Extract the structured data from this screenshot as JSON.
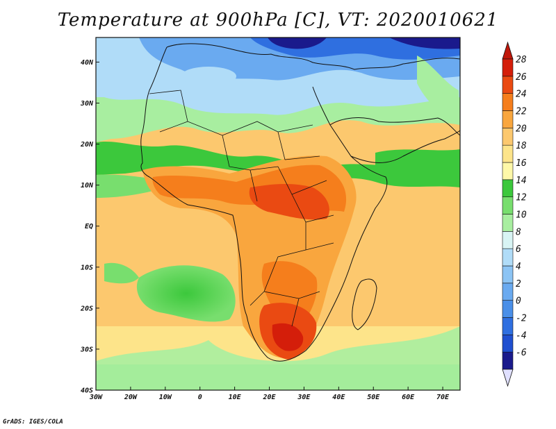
{
  "title": "Temperature at 900hPa [C], VT: 2020010621",
  "credit": "GrADS: IGES/COLA",
  "map": {
    "lon_range": [
      -30,
      75
    ],
    "lat_range": [
      -40,
      46
    ],
    "lon_ticks": [
      {
        "value": -30,
        "label": "30W"
      },
      {
        "value": -20,
        "label": "20W"
      },
      {
        "value": -10,
        "label": "10W"
      },
      {
        "value": 0,
        "label": "0"
      },
      {
        "value": 10,
        "label": "10E"
      },
      {
        "value": 20,
        "label": "20E"
      },
      {
        "value": 30,
        "label": "30E"
      },
      {
        "value": 40,
        "label": "40E"
      },
      {
        "value": 50,
        "label": "50E"
      },
      {
        "value": 60,
        "label": "60E"
      },
      {
        "value": 70,
        "label": "70E"
      }
    ],
    "lat_ticks": [
      {
        "value": 40,
        "label": "40N"
      },
      {
        "value": 30,
        "label": "30N"
      },
      {
        "value": 20,
        "label": "20N"
      },
      {
        "value": 10,
        "label": "10N"
      },
      {
        "value": 0,
        "label": "EQ"
      },
      {
        "value": -10,
        "label": "10S"
      },
      {
        "value": -20,
        "label": "20S"
      },
      {
        "value": -30,
        "label": "30S"
      },
      {
        "value": -40,
        "label": "40S"
      }
    ]
  },
  "colorbar": {
    "levels": [
      -6,
      -4,
      -2,
      0,
      2,
      4,
      6,
      8,
      10,
      12,
      14,
      16,
      18,
      20,
      22,
      24,
      26,
      28
    ],
    "labels": [
      "-6",
      "-4",
      "-2",
      "0",
      "2",
      "4",
      "6",
      "8",
      "10",
      "12",
      "14",
      "16",
      "18",
      "20",
      "22",
      "24",
      "26",
      "28"
    ],
    "colors": [
      "#1a1a8c",
      "#1f4fd0",
      "#2f6fe0",
      "#4a8fe8",
      "#6aaaf0",
      "#8cc4f4",
      "#b0dcf8",
      "#d8f4f4",
      "#a8eea0",
      "#78de6e",
      "#3cc83c",
      "#fef8a8",
      "#fde48a",
      "#fcc86e",
      "#f9a63e",
      "#f57e1c",
      "#ea4a12",
      "#d41e0a"
    ],
    "under_color": "#e0e0ff",
    "over_color": "#c0170a"
  }
}
